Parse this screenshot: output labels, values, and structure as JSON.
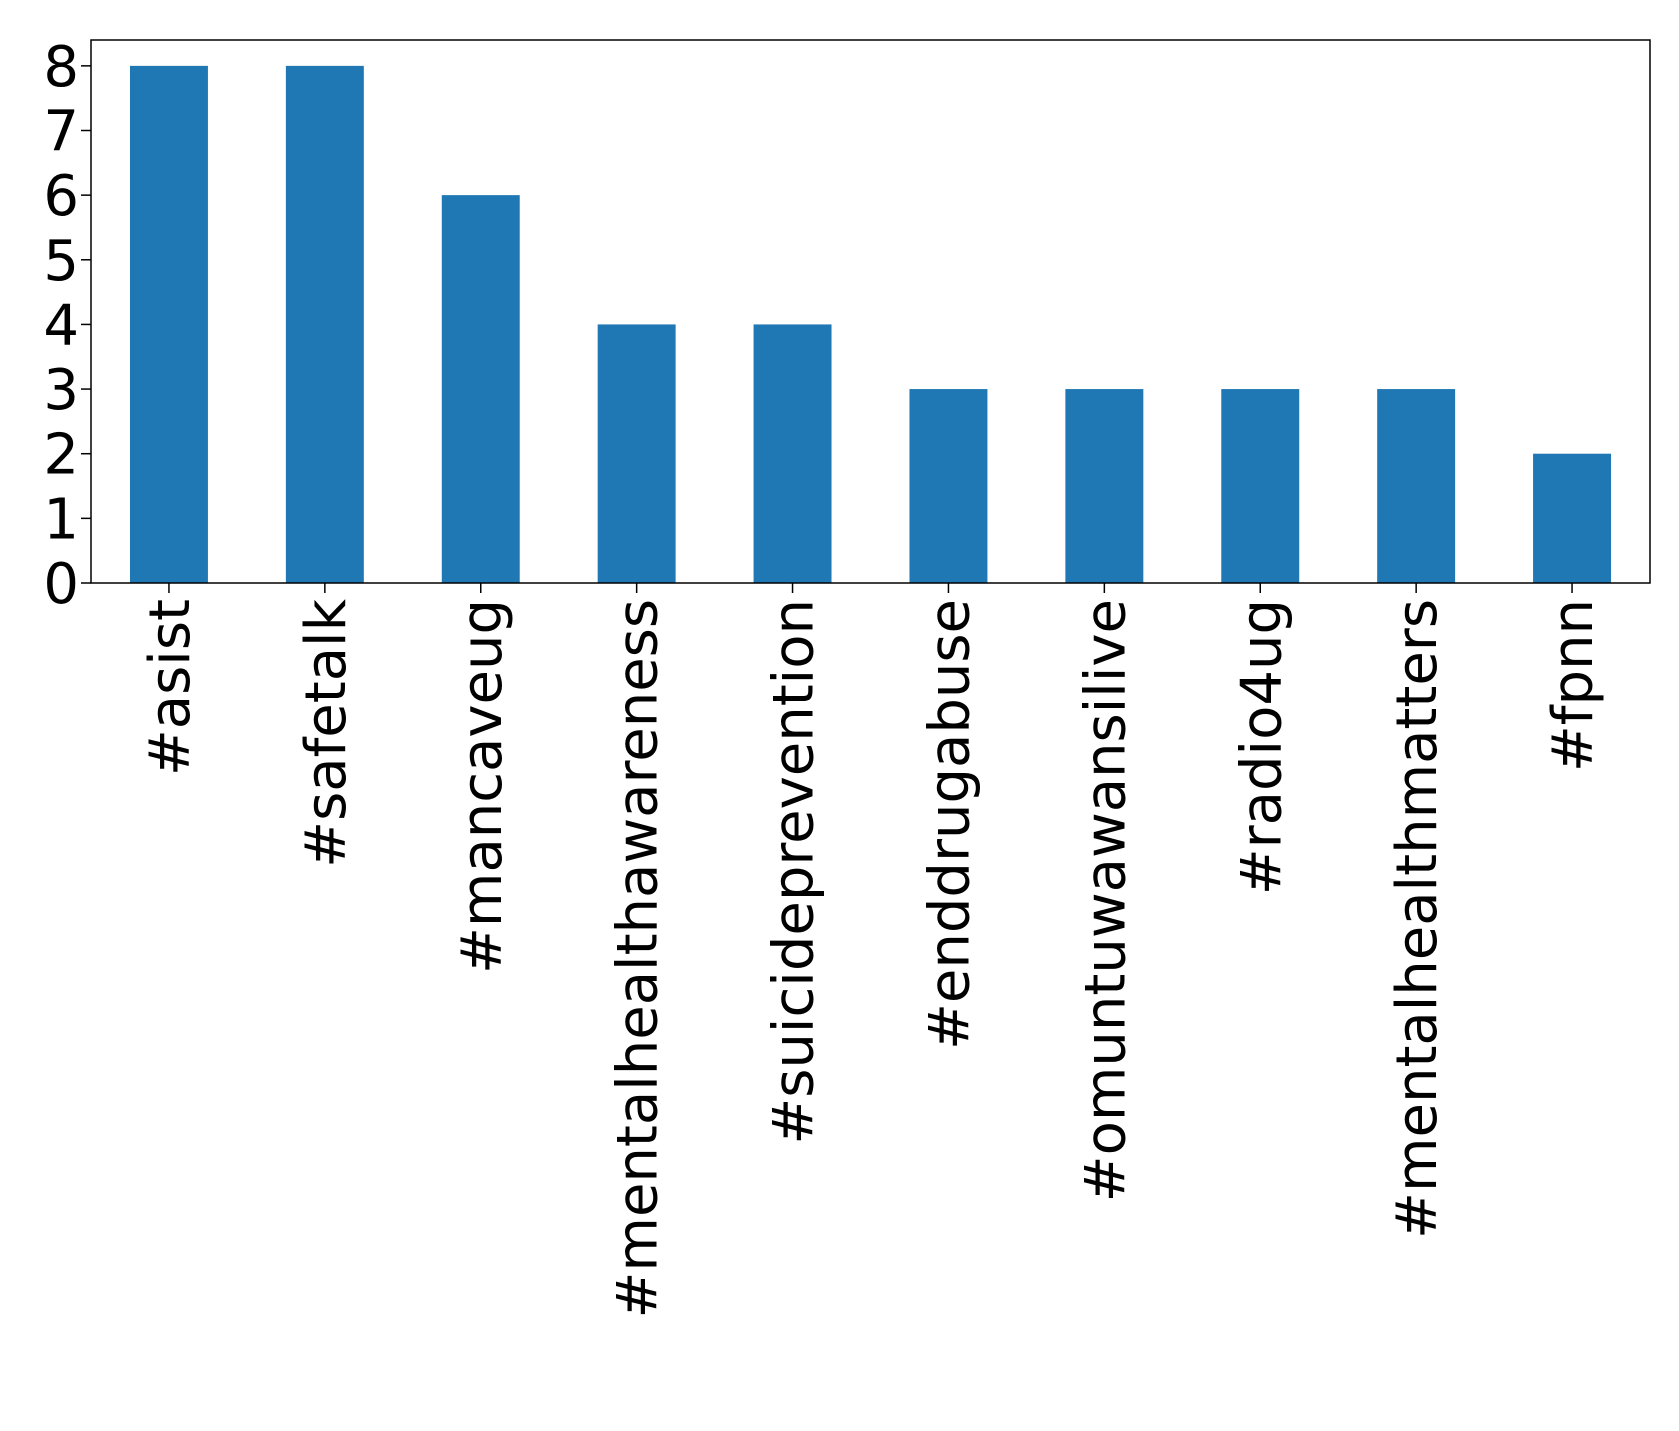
{
  "chart_data": {
    "type": "bar",
    "categories": [
      "#asist",
      "#safetalk",
      "#mancaveug",
      "#mentalhealthawareness",
      "#suicideprevention",
      "#enddrugabuse",
      "#omuntuwawansilive",
      "#radio4ug",
      "#mentalhealthmatters",
      "#fpnn"
    ],
    "values": [
      8,
      8,
      6,
      4,
      4,
      3,
      3,
      3,
      3,
      2
    ],
    "yticks": [
      "0",
      "1",
      "2",
      "3",
      "4",
      "5",
      "6",
      "7",
      "8"
    ],
    "ylim": [
      0,
      8.4
    ],
    "title": "",
    "xlabel": "",
    "ylabel": "",
    "grid": false,
    "bar_color": "#1f77b4"
  }
}
